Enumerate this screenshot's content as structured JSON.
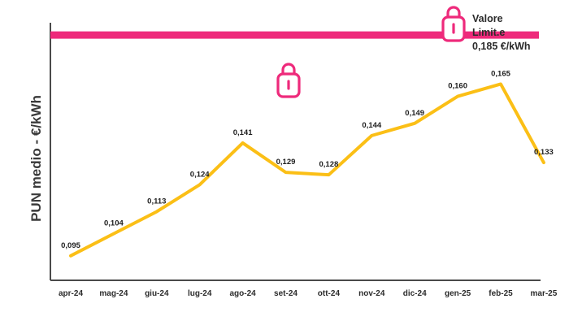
{
  "chart_data": {
    "type": "line",
    "categories": [
      "apr-24",
      "mag-24",
      "giu-24",
      "lug-24",
      "ago-24",
      "set-24",
      "ott-24",
      "nov-24",
      "dic-24",
      "gen-25",
      "feb-25",
      "mar-25"
    ],
    "values": [
      0.095,
      0.104,
      0.113,
      0.124,
      0.141,
      0.129,
      0.128,
      0.144,
      0.149,
      0.16,
      0.165,
      0.133
    ],
    "value_labels": [
      "0,095",
      "0,104",
      "0,113",
      "0,124",
      "0,141",
      "0,129",
      "0,128",
      "0,144",
      "0,149",
      "0,160",
      "0,165",
      "0,133"
    ],
    "ylabel": "PUN medio - €/kWh",
    "xlabel": "",
    "ylim": [
      0.085,
      0.19
    ],
    "grid": false,
    "line_color": "#fbbf16",
    "reference_line": {
      "value": 0.185,
      "color": "#ee2a7b",
      "label_lines": [
        "Valore",
        "Limit.e",
        "0,185 €/kWh"
      ]
    }
  },
  "icons": {
    "limit_icon": "padlock-icon",
    "line_icon": "padlock-icon"
  }
}
